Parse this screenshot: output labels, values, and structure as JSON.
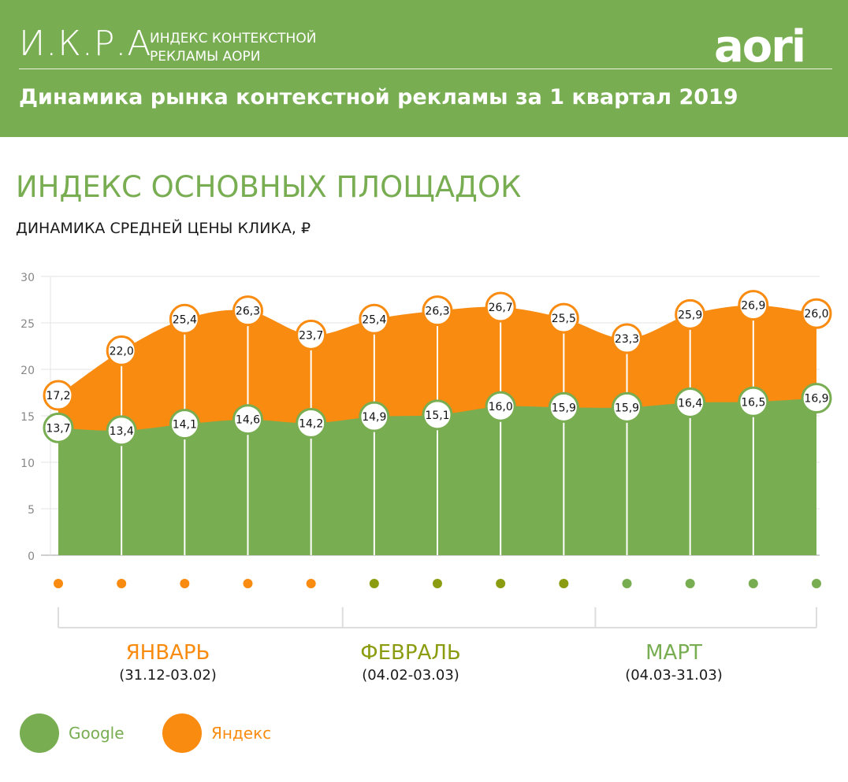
{
  "header": {
    "brand": "И.К.Р.А",
    "brand_sub_1": "ИНДЕКС КОНТЕКСТНОЙ",
    "brand_sub_2": "РЕКЛАМЫ АОРИ",
    "logo": "aori",
    "title": "Динамика рынка контекстной рекламы за 1 квартал 2019"
  },
  "section_title": "ИНДЕКС ОСНОВНЫХ ПЛОЩАДОК",
  "colors": {
    "google": "#78ad52",
    "yandex": "#f98b10",
    "february": "#8b9c10",
    "grid": "#e3e3e3"
  },
  "months": [
    {
      "name": "ЯНВАРЬ",
      "range": "(31.12-03.02)",
      "color": "#f98b10",
      "weeks": 5
    },
    {
      "name": "ФЕВРАЛЬ",
      "range": "(04.02-03.03)",
      "color": "#8b9c10",
      "weeks": 4
    },
    {
      "name": "МАРТ",
      "range": "(04.03-31.03)",
      "color": "#78ad52",
      "weeks": 4
    }
  ],
  "legend": [
    {
      "label": "Google",
      "color": "#78ad52"
    },
    {
      "label": "Яндекс",
      "color": "#f98b10"
    }
  ],
  "chart_data": {
    "type": "area",
    "title": "ДИНАМИКА СРЕДНЕЙ ЦЕНЫ КЛИКА, ₽",
    "ylim": [
      0,
      30
    ],
    "yticks": [
      0,
      5,
      10,
      15,
      20,
      25,
      30
    ],
    "grid": true,
    "legend_position": "bottom-left",
    "x_count": 13,
    "series": [
      {
        "name": "Google",
        "values": [
          13.7,
          13.4,
          14.1,
          14.6,
          14.2,
          14.9,
          15.1,
          16.0,
          15.9,
          15.9,
          16.4,
          16.5,
          16.9
        ],
        "labels": [
          "13,7",
          "13,4",
          "14,1",
          "14,6",
          "14,2",
          "14,9",
          "15,1",
          "16,0",
          "15,9",
          "15,9",
          "16,4",
          "16,5",
          "16,9"
        ]
      },
      {
        "name": "Яндекс",
        "values": [
          17.2,
          22.0,
          25.4,
          26.3,
          23.7,
          25.4,
          26.3,
          26.7,
          25.5,
          23.3,
          25.9,
          26.9,
          26.0
        ],
        "labels": [
          "17,2",
          "22,0",
          "25,4",
          "26,3",
          "23,7",
          "25,4",
          "26,3",
          "26,7",
          "25,5",
          "23,3",
          "25,9",
          "26,9",
          "26,0"
        ]
      }
    ]
  }
}
